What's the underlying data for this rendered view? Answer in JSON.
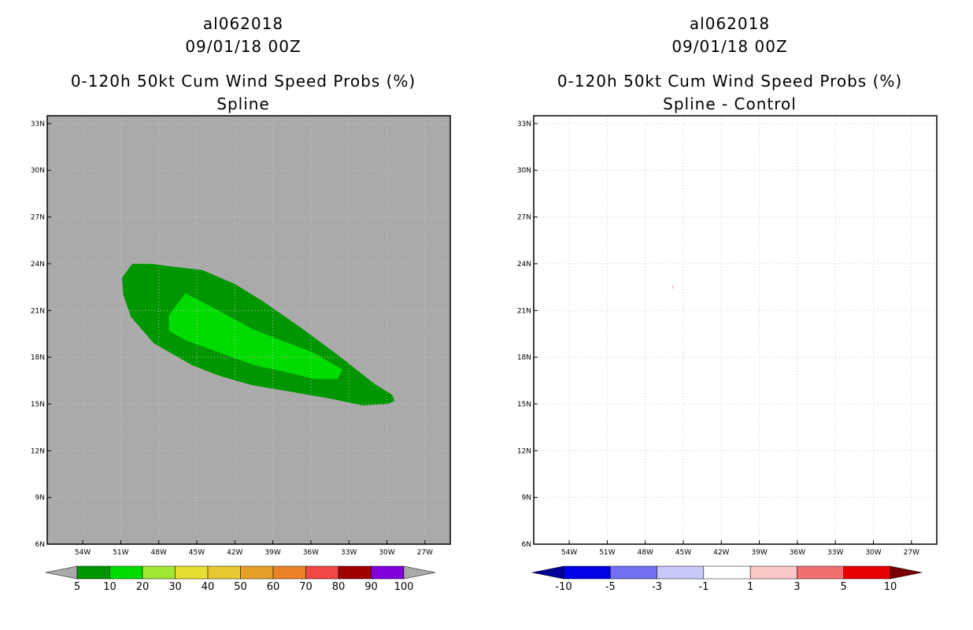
{
  "chart_data": [
    {
      "type": "heatmap",
      "title": [
        "al062018",
        "09/01/18 00Z",
        "0-120h 50kt Cum Wind Speed Probs (%)",
        "Spline"
      ],
      "xlabel": "",
      "ylabel": "",
      "x_ticks": [
        "54W",
        "51W",
        "48W",
        "45W",
        "42W",
        "39W",
        "36W",
        "33W",
        "30W",
        "27W"
      ],
      "y_ticks": [
        "33N",
        "30N",
        "27N",
        "24N",
        "21N",
        "18N",
        "15N",
        "12N",
        "9N",
        "6N"
      ],
      "xlim": [
        -56.8,
        -25.0
      ],
      "ylim": [
        6,
        33.5
      ],
      "grid": true,
      "background": "#aaaaaa",
      "colorbar": {
        "labels": [
          "5",
          "10",
          "20",
          "30",
          "40",
          "50",
          "60",
          "70",
          "80",
          "90",
          "100"
        ],
        "colors": [
          "#009600",
          "#00dc00",
          "#a0e632",
          "#e6dc32",
          "#e6c832",
          "#e6a028",
          "#eb8228",
          "#f04646",
          "#a00000",
          "#8200dc"
        ],
        "under_color": "#aaaaaa",
        "over_color": "#aaaaaa"
      },
      "contours": [
        {
          "level": "5-10",
          "color": "#009600",
          "points": [
            [
              -50.9,
              23.1
            ],
            [
              -50.1,
              24.0
            ],
            [
              -48.6,
              24.0
            ],
            [
              -46.8,
              23.8
            ],
            [
              -44.6,
              23.6
            ],
            [
              -42.0,
              22.7
            ],
            [
              -39.8,
              21.6
            ],
            [
              -36.8,
              19.9
            ],
            [
              -33.8,
              18.1
            ],
            [
              -31.0,
              16.3
            ],
            [
              -29.6,
              15.6
            ],
            [
              -29.4,
              15.2
            ],
            [
              -29.9,
              15.0
            ],
            [
              -31.9,
              14.9
            ],
            [
              -34.2,
              15.3
            ],
            [
              -37.7,
              15.8
            ],
            [
              -40.6,
              16.2
            ],
            [
              -43.2,
              16.8
            ],
            [
              -45.4,
              17.5
            ],
            [
              -48.4,
              18.9
            ],
            [
              -50.2,
              20.6
            ],
            [
              -50.8,
              22.0
            ]
          ]
        },
        {
          "level": "10-20",
          "color": "#00dc00",
          "points": [
            [
              -45.9,
              22.1
            ],
            [
              -44.7,
              21.6
            ],
            [
              -43.3,
              21.0
            ],
            [
              -40.6,
              19.8
            ],
            [
              -38.4,
              19.1
            ],
            [
              -35.8,
              18.3
            ],
            [
              -33.5,
              17.2
            ],
            [
              -33.9,
              16.6
            ],
            [
              -35.7,
              16.6
            ],
            [
              -37.7,
              17.0
            ],
            [
              -40.5,
              17.5
            ],
            [
              -43.2,
              18.3
            ],
            [
              -45.9,
              19.1
            ],
            [
              -47.2,
              19.7
            ],
            [
              -47.2,
              20.7
            ]
          ]
        }
      ]
    },
    {
      "type": "heatmap",
      "title": [
        "al062018",
        "09/01/18 00Z",
        "0-120h 50kt Cum Wind Speed Probs (%)",
        "Spline - Control"
      ],
      "xlabel": "",
      "ylabel": "",
      "x_ticks": [
        "54W",
        "51W",
        "48W",
        "45W",
        "42W",
        "39W",
        "36W",
        "33W",
        "30W",
        "27W"
      ],
      "y_ticks": [
        "33N",
        "30N",
        "27N",
        "24N",
        "21N",
        "18N",
        "15N",
        "12N",
        "9N",
        "6N"
      ],
      "xlim": [
        -56.8,
        -25.0
      ],
      "ylim": [
        6,
        33.5
      ],
      "grid": true,
      "background": "#ffffff",
      "colorbar": {
        "labels": [
          "-10",
          "-5",
          "-3",
          "-1",
          "1",
          "3",
          "5",
          "10"
        ],
        "colors": [
          "#0000e6",
          "#7070f0",
          "#c8c8fa",
          "#ffffff",
          "#fac8c8",
          "#f07070",
          "#e60000"
        ],
        "under_color": "#000096",
        "over_color": "#780000"
      },
      "contours": [
        {
          "level": "1-3",
          "color": "#fac8c8",
          "points": [
            [
              -45.9,
              22.6
            ],
            [
              -45.75,
              22.6
            ],
            [
              -45.75,
              22.4
            ],
            [
              -45.9,
              22.4
            ]
          ]
        }
      ]
    }
  ]
}
